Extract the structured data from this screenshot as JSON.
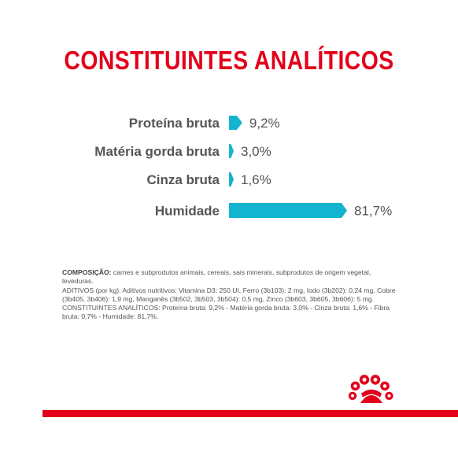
{
  "colors": {
    "title": "#e2001a",
    "label": "#555555",
    "bar": "#13b4cf",
    "bar_light": "#4cc9de",
    "text": "#555555",
    "brand_red": "#e2001a"
  },
  "chart_data": {
    "type": "bar",
    "orientation": "horizontal",
    "title": "CONSTITUINTES ANALÍTICOS",
    "categories": [
      "Proteína bruta",
      "Matéria gorda bruta",
      "Cinza bruta",
      "Humidade"
    ],
    "values": [
      9.2,
      3.0,
      1.6,
      81.7
    ],
    "value_labels": [
      "9,2%",
      "3,0%",
      "1,6%",
      "81,7%"
    ],
    "unit": "%",
    "xlim": [
      0,
      81.7
    ],
    "grid": false,
    "legend": "none"
  },
  "composition": {
    "heading": "COMPOSIÇÃO:",
    "line1": " carnes e subprodutos animais, cereais, sais minerais, subprodutos de origem vegetal, leveduras.",
    "line2": "ADITIVOS (por kg): Aditivos nutritivos: Vitamina D3: 250 UI, Ferro (3b103): 2 mg, Iodo (3b202): 0,24 mg, Cobre (3b405, 3b406): 1,9 mg, Manganês (3b502, 3b503, 3b504): 0,5 mg, Zinco (3b603, 3b605, 3b606): 5 mg.",
    "line3": "CONSTITUINTES ANALÍTICOS: Proteína bruta: 9,2% - Matéria gorda bruta: 3,0% - Cinza bruta: 1,6% - Fibra bruta: 0,7% - Humidade: 81,7%."
  },
  "brand": {
    "logo_icon": "royal-canin-crown-icon"
  }
}
